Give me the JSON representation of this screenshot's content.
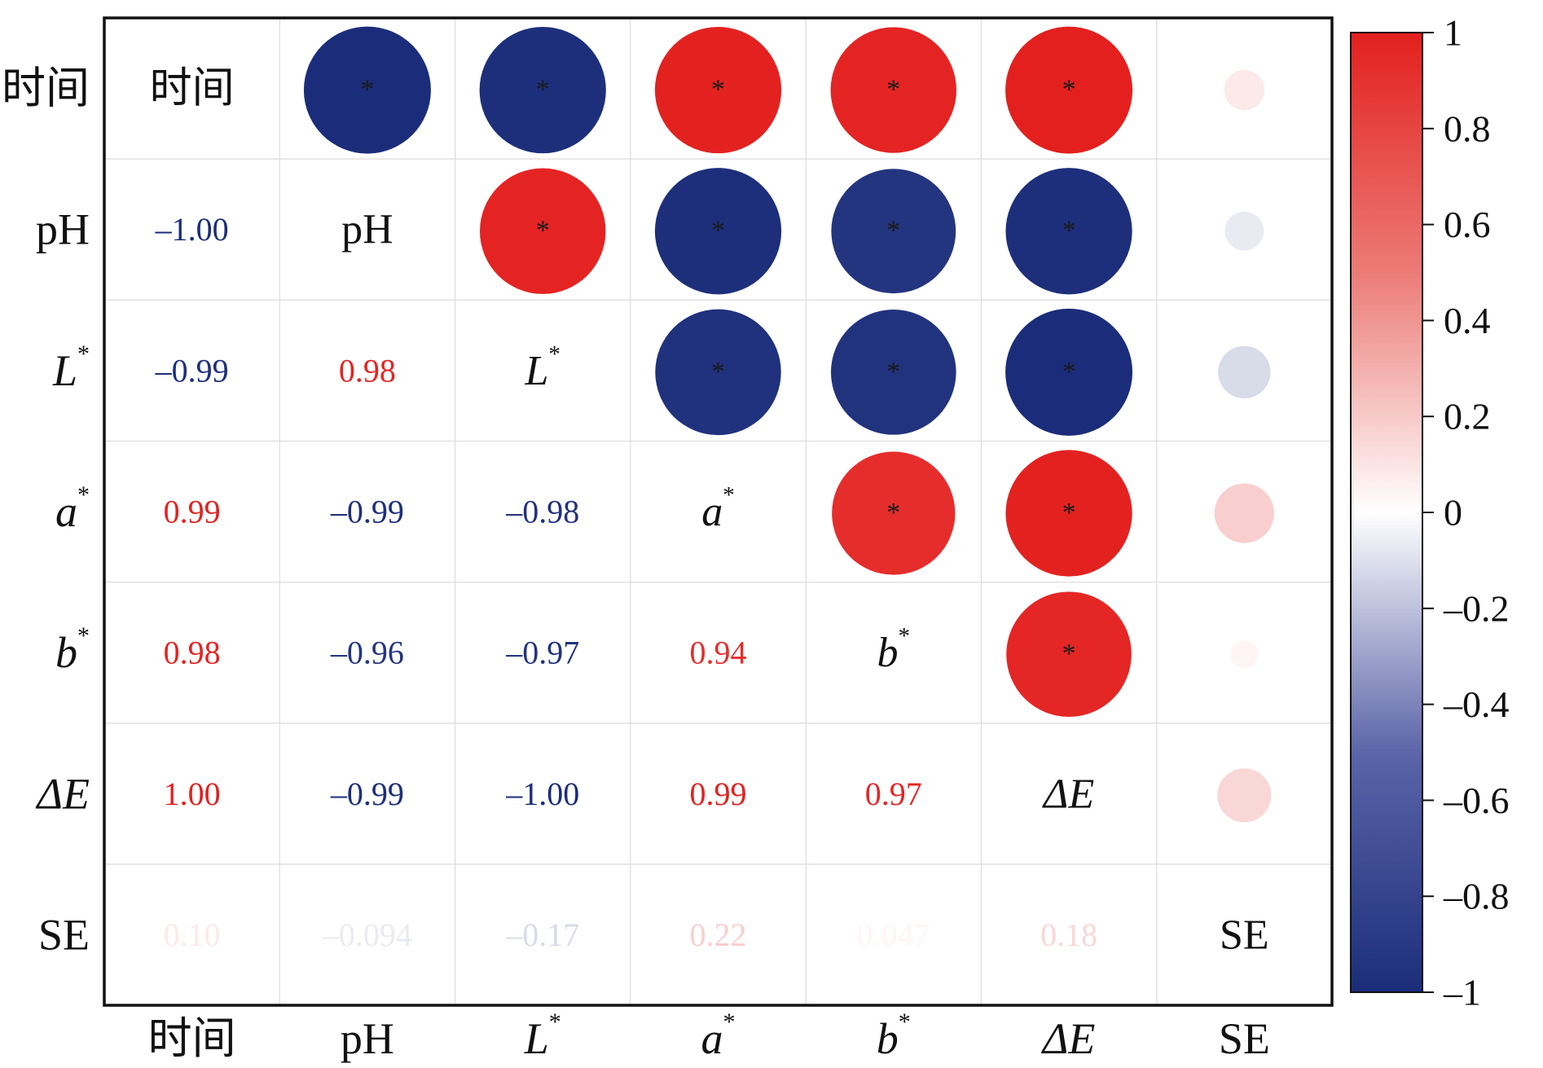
{
  "chart_data": {
    "type": "heatmap",
    "variables": [
      {
        "name": "时间",
        "main": "时间",
        "sup": "",
        "italic": false
      },
      {
        "name": "pH",
        "main": "pH",
        "sup": "",
        "italic": false
      },
      {
        "name": "L*",
        "main": "L",
        "sup": "*",
        "italic": true
      },
      {
        "name": "a*",
        "main": "a",
        "sup": "*",
        "italic": true
      },
      {
        "name": "b*",
        "main": "b",
        "sup": "*",
        "italic": true
      },
      {
        "name": "ΔE",
        "main": "ΔE",
        "sup": "",
        "italic": true
      },
      {
        "name": "SE",
        "main": "SE",
        "sup": "",
        "italic": false
      }
    ],
    "lower_labels": [
      [
        null,
        null,
        null,
        null,
        null,
        null,
        null
      ],
      [
        "-1.00",
        null,
        null,
        null,
        null,
        null,
        null
      ],
      [
        "-0.99",
        "0.98",
        null,
        null,
        null,
        null,
        null
      ],
      [
        "0.99",
        "-0.99",
        "-0.98",
        null,
        null,
        null,
        null
      ],
      [
        "0.98",
        "-0.96",
        "-0.97",
        "0.94",
        null,
        null,
        null
      ],
      [
        "1.00",
        "-0.99",
        "-1.00",
        "0.99",
        "0.97",
        null,
        null
      ],
      [
        "0.10",
        "-0.094",
        "-0.17",
        "0.22",
        "0.047",
        "0.18",
        null
      ]
    ],
    "correlations": [
      [
        1,
        -1.0,
        -0.99,
        0.99,
        0.98,
        1.0,
        0.1
      ],
      [
        -1.0,
        1,
        0.98,
        -0.99,
        -0.96,
        -0.99,
        -0.094
      ],
      [
        -0.99,
        0.98,
        1,
        -0.98,
        -0.97,
        -1.0,
        -0.17
      ],
      [
        0.99,
        -0.99,
        -0.98,
        1,
        0.94,
        0.99,
        0.22
      ],
      [
        0.98,
        -0.96,
        -0.97,
        0.94,
        1,
        0.97,
        0.047
      ],
      [
        1.0,
        -0.99,
        -1.0,
        0.99,
        0.97,
        1,
        0.18
      ],
      [
        0.1,
        -0.094,
        -0.17,
        0.22,
        0.047,
        0.18,
        1
      ]
    ],
    "significance_marker": "*",
    "colorbar": {
      "range": [
        -1,
        1
      ],
      "ticks": [
        "1",
        "0.8",
        "0.6",
        "0.4",
        "0.2",
        "0",
        "-0.2",
        "-0.4",
        "-0.6",
        "-0.8",
        "-1"
      ],
      "tick_values": [
        1,
        0.8,
        0.6,
        0.4,
        0.2,
        0,
        -0.2,
        -0.4,
        -0.6,
        -0.8,
        -1
      ],
      "low_color": "#1b2d7a",
      "mid_color": "#ffffff",
      "high_color": "#e3201e"
    }
  }
}
